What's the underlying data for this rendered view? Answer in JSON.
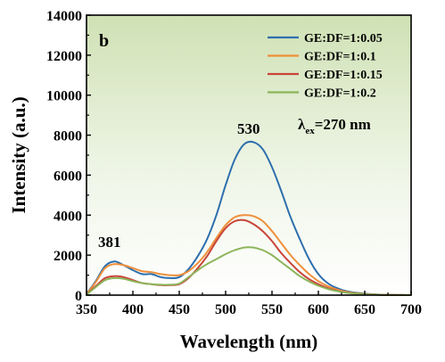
{
  "chart_data": {
    "type": "line",
    "panel_label": "b",
    "xlabel": "Wavelength (nm)",
    "ylabel": "Intensity (a.u.)",
    "xlim": [
      350,
      700
    ],
    "ylim": [
      0,
      14000
    ],
    "x_ticks": [
      "350",
      "400",
      "450",
      "500",
      "550",
      "600",
      "650",
      "700"
    ],
    "y_ticks": [
      "0",
      "2000",
      "4000",
      "6000",
      "8000",
      "10000",
      "12000",
      "14000"
    ],
    "grid": false,
    "legend_position": "top-right",
    "annotations": {
      "peak_left": "381",
      "peak_right": "530",
      "excitation_symbol": "λ",
      "excitation_sub": "ex",
      "excitation_value": "=270 nm"
    },
    "x": [
      350,
      360,
      370,
      380,
      390,
      400,
      410,
      420,
      430,
      440,
      450,
      460,
      470,
      480,
      490,
      500,
      510,
      520,
      530,
      540,
      550,
      560,
      570,
      580,
      590,
      600,
      610,
      620,
      630,
      640,
      650,
      660,
      670,
      680,
      690,
      700
    ],
    "series": [
      {
        "name": "GE:DF=1:0.05",
        "color": "#2e6fad",
        "values": [
          60,
          700,
          1450,
          1680,
          1500,
          1250,
          1050,
          1050,
          900,
          850,
          900,
          1300,
          1950,
          2800,
          4000,
          5500,
          6800,
          7550,
          7650,
          7300,
          6400,
          5200,
          3900,
          2800,
          1800,
          1050,
          600,
          350,
          200,
          120,
          70,
          40,
          20,
          10,
          5,
          0
        ]
      },
      {
        "name": "GE:DF=1:0.1",
        "color": "#ef8f3a",
        "values": [
          40,
          650,
          1350,
          1550,
          1500,
          1350,
          1200,
          1150,
          1050,
          1000,
          1000,
          1200,
          1600,
          2150,
          2850,
          3500,
          3900,
          4000,
          3950,
          3700,
          3200,
          2600,
          2000,
          1500,
          1050,
          700,
          450,
          280,
          170,
          100,
          60,
          30,
          15,
          8,
          4,
          0
        ]
      },
      {
        "name": "GE:DF=1:0.15",
        "color": "#c84438",
        "values": [
          30,
          450,
          850,
          950,
          900,
          750,
          600,
          550,
          500,
          500,
          550,
          850,
          1350,
          1950,
          2700,
          3350,
          3700,
          3750,
          3550,
          3200,
          2700,
          2100,
          1600,
          1150,
          800,
          550,
          350,
          220,
          130,
          80,
          45,
          25,
          12,
          6,
          3,
          0
        ]
      },
      {
        "name": "GE:DF=1:0.2",
        "color": "#8cb55a",
        "values": [
          20,
          400,
          750,
          850,
          820,
          700,
          600,
          550,
          520,
          520,
          580,
          900,
          1250,
          1550,
          1800,
          2050,
          2250,
          2380,
          2380,
          2250,
          2000,
          1650,
          1300,
          950,
          680,
          470,
          310,
          200,
          120,
          75,
          45,
          25,
          12,
          6,
          3,
          0
        ]
      }
    ]
  }
}
